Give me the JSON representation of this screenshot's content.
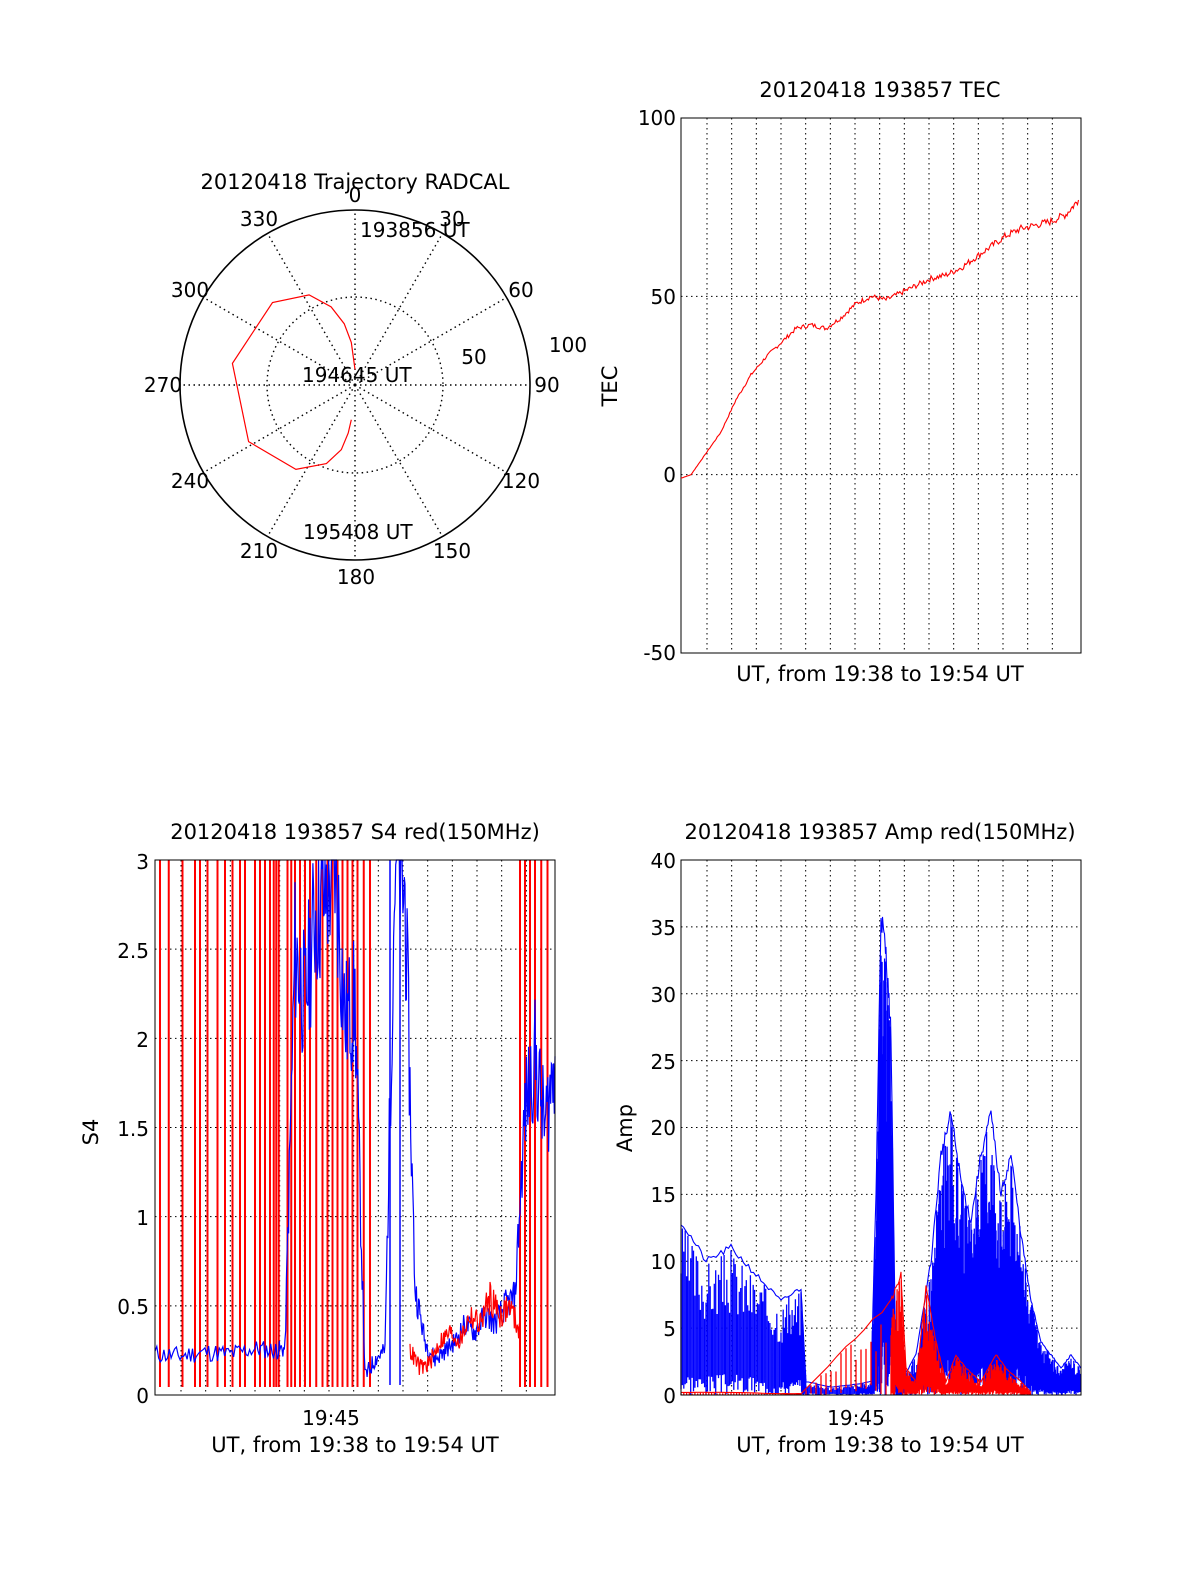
{
  "chart_data": [
    {
      "type": "polar",
      "title": "20120418 Trajectory RADCAL",
      "azimuth_labels": [
        "0",
        "30",
        "60",
        "90",
        "120",
        "150",
        "180",
        "210",
        "240",
        "270",
        "300",
        "330"
      ],
      "radial_labels": [
        "50",
        "100"
      ],
      "annotations": [
        "193856 UT",
        "194645 UT",
        "195408 UT"
      ],
      "series": [
        {
          "color": "#ff0000",
          "points": [
            [
              0,
              82
            ],
            [
              -5,
              68
            ],
            [
              -10,
              58
            ],
            [
              -17,
              48
            ],
            [
              -27,
              38
            ],
            [
              -45,
              30
            ],
            [
              -80,
              26
            ],
            [
              -118,
              28
            ],
            [
              -145,
              37
            ],
            [
              -160,
              47
            ],
            [
              -168,
              56
            ],
            [
              -172,
              65
            ],
            [
              -174,
              72
            ]
          ]
        }
      ]
    },
    {
      "type": "line",
      "title": "20120418 193857 TEC",
      "xlabel": "UT, from 19:38 to 19:54 UT",
      "ylabel": "TEC",
      "xlim": [
        0,
        16
      ],
      "ylim": [
        -50,
        100
      ],
      "yticks": [
        "100",
        "50",
        "0",
        "-50"
      ],
      "grid": true,
      "series": [
        {
          "color": "#ff0000",
          "x": [
            0,
            0.4,
            1.0,
            1.6,
            2.2,
            2.8,
            3.4,
            4.0,
            4.6,
            5.2,
            5.8,
            6.4,
            7.0,
            7.6,
            8.2,
            8.8,
            9.4,
            10.0,
            10.6,
            11.2,
            11.8,
            12.4,
            13.0,
            13.6,
            14.2,
            14.8,
            15.4,
            15.9
          ],
          "y": [
            -1,
            0,
            6,
            12,
            21,
            28,
            33,
            37,
            41,
            42,
            41,
            44,
            48,
            50,
            49,
            51,
            53,
            55,
            56,
            58,
            61,
            64,
            67,
            69,
            70,
            71,
            73,
            77
          ]
        }
      ]
    },
    {
      "type": "line",
      "title": "20120418 193857 S4 red(150MHz)",
      "xlabel": "UT, from 19:38 to 19:54 UT",
      "ylabel": "S4",
      "xlim": [
        0,
        16
      ],
      "ylim": [
        0,
        3
      ],
      "yticks": [
        "0",
        "0.5",
        "1",
        "1.5",
        "2",
        "2.5",
        "3"
      ],
      "xticks": [
        "19:45"
      ],
      "grid": true,
      "series": [
        {
          "color": "#0000ff",
          "x": [
            0,
            1,
            2,
            3,
            4,
            4.8,
            5.2,
            5.6,
            6.0,
            6.4,
            6.8,
            7.2,
            7.6,
            8.0,
            8.4,
            8.8,
            9.2,
            9.6,
            10.0,
            10.4,
            10.8,
            11.2,
            11.6,
            12.0,
            12.4,
            12.8,
            13.2,
            13.6,
            14.0,
            14.4,
            14.8,
            15.2,
            15.6,
            16.0
          ],
          "y": [
            0.23,
            0.22,
            0.24,
            0.23,
            0.26,
            0.25,
            0.26,
            2.5,
            2.2,
            2.7,
            2.8,
            3.0,
            2.1,
            2.2,
            0.1,
            0.2,
            0.25,
            3.0,
            2.8,
            0.6,
            0.3,
            0.2,
            0.25,
            0.3,
            0.4,
            0.35,
            0.45,
            0.4,
            0.5,
            0.55,
            1.6,
            1.9,
            1.5,
            1.9
          ]
        },
        {
          "color": "#ff0000",
          "x": [
            10.2,
            10.6,
            11.0,
            11.4,
            11.8,
            12.2,
            12.6,
            13.0,
            13.4,
            13.8,
            14.2,
            14.6
          ],
          "y": [
            0.25,
            0.15,
            0.18,
            0.3,
            0.35,
            0.3,
            0.45,
            0.4,
            0.55,
            0.45,
            0.5,
            0.35
          ]
        }
      ]
    },
    {
      "type": "line",
      "title": "20120418 193857 Amp red(150MHz)",
      "xlabel": "UT, from 19:38 to 19:54 UT",
      "ylabel": "Amp",
      "xlim": [
        0,
        16
      ],
      "ylim": [
        0,
        40
      ],
      "yticks": [
        "0",
        "5",
        "10",
        "15",
        "20",
        "25",
        "30",
        "35",
        "40"
      ],
      "xticks": [
        "19:45"
      ],
      "grid": true,
      "series": [
        {
          "color": "#0000ff",
          "x": [
            0,
            1,
            2,
            3,
            4,
            4.8,
            5.0,
            6,
            7,
            7.6,
            7.8,
            8.0,
            8.2,
            8.4,
            8.6,
            8.8,
            9.4,
            10.0,
            10.4,
            10.8,
            11.2,
            11.6,
            12.0,
            12.4,
            12.8,
            13.2,
            13.6,
            14.0,
            14.4,
            14.8,
            15.2,
            15.6,
            16.0
          ],
          "y": [
            13,
            10,
            11,
            9,
            7,
            8,
            1,
            0.6,
            0.8,
            1,
            15,
            36,
            33,
            27,
            1,
            1,
            3,
            10,
            18,
            21,
            16,
            13,
            18,
            21,
            15,
            18,
            12,
            7,
            4,
            3,
            2,
            3,
            2
          ]
        },
        {
          "color": "#ff0000",
          "x": [
            0,
            2,
            4,
            4.8,
            8.4,
            8.8,
            9.0,
            9.4,
            9.8,
            10.2,
            10.6,
            11.0,
            11.4,
            12.0,
            12.6,
            13.0,
            13.6,
            14.0
          ],
          "y": [
            0.2,
            0.2,
            0.1,
            0.1,
            7,
            9,
            2,
            1,
            8,
            4,
            1,
            3,
            2,
            1,
            3,
            2,
            1,
            0.2
          ]
        }
      ]
    }
  ]
}
